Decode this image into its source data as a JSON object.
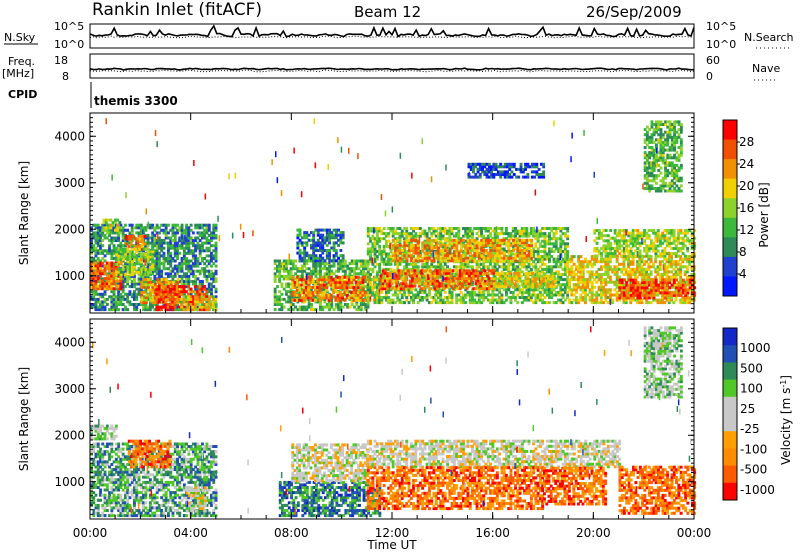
{
  "header": {
    "station": "Rankin Inlet (fitACF)",
    "beam": "Beam 12",
    "date": "26/Sep/2009"
  },
  "top_panels": {
    "nsky_label": "N.Sky",
    "nsky_ticks": [
      "10^5",
      "10^0"
    ],
    "nsearch_label": "N.Search",
    "nsearch_ticks": [
      "10^5",
      "10^0"
    ],
    "freq_label_1": "Freq.",
    "freq_label_2": "[MHz]",
    "freq_ticks": [
      "18",
      "8"
    ],
    "nave_label": "Nave",
    "nave_ticks": [
      "60",
      "0"
    ],
    "cpid_label": "CPID",
    "cpid_value": "themis 3300"
  },
  "x_axis": {
    "label": "Time UT",
    "ticks": [
      "00:00",
      "04:00",
      "08:00",
      "12:00",
      "16:00",
      "20:00",
      "00:00"
    ]
  },
  "colors": {
    "scale": [
      "#0018ff",
      "#2040d0",
      "#2e8b57",
      "#3cb83c",
      "#8cd22c",
      "#f0d000",
      "#f09000",
      "#f05000",
      "#ff0000"
    ],
    "velocity_scale": [
      "#ff0000",
      "#ff5a00",
      "#ff8c00",
      "#ffa000",
      "#c8c8c8",
      "#c8c8c8",
      "#50c828",
      "#2e8b57",
      "#2050b4",
      "#1428c8"
    ],
    "gray": "#c8c8c8"
  },
  "chart_data": [
    {
      "type": "heatmap",
      "title": "Power",
      "xlabel": "Time UT",
      "ylabel": "Slant Range [km]",
      "xlim": [
        0,
        24
      ],
      "ylim": [
        200,
        4500
      ],
      "yticks": [
        1000,
        2000,
        3000,
        4000
      ],
      "colorbar_label": "Power [dB]",
      "colorbar_ticks": [
        4,
        8,
        12,
        16,
        20,
        24,
        28
      ],
      "colorbar_range": [
        0,
        32
      ],
      "bands": [
        {
          "t0": 0.0,
          "t1": 5.0,
          "r0": 250,
          "r1": 2100,
          "c": 0.3
        },
        {
          "t0": 0.0,
          "t1": 1.2,
          "r0": 700,
          "r1": 1300,
          "c": 0.8
        },
        {
          "t0": 0.5,
          "t1": 1.2,
          "r0": 1900,
          "r1": 2200,
          "c": 0.5
        },
        {
          "t0": 1.4,
          "t1": 2.2,
          "r0": 1550,
          "r1": 1850,
          "c": 0.75
        },
        {
          "t0": 1.0,
          "t1": 2.5,
          "r0": 1000,
          "r1": 1600,
          "c": 0.5
        },
        {
          "t0": 2.0,
          "t1": 3.5,
          "r0": 400,
          "r1": 900,
          "c": 0.7
        },
        {
          "t0": 2.6,
          "t1": 4.6,
          "r0": 250,
          "r1": 750,
          "c": 0.85
        },
        {
          "t0": 3.5,
          "t1": 5.0,
          "r0": 250,
          "r1": 550,
          "c": 0.6
        },
        {
          "t0": 7.3,
          "t1": 11.0,
          "r0": 250,
          "r1": 1300,
          "c": 0.4
        },
        {
          "t0": 8.0,
          "t1": 11.5,
          "r0": 450,
          "r1": 950,
          "c": 0.75
        },
        {
          "t0": 8.2,
          "t1": 10.0,
          "r0": 1300,
          "r1": 2000,
          "c": 0.25
        },
        {
          "t0": 11.0,
          "t1": 19.0,
          "r0": 400,
          "r1": 2000,
          "c": 0.45
        },
        {
          "t0": 12.0,
          "t1": 17.5,
          "r0": 1300,
          "r1": 1750,
          "c": 0.7
        },
        {
          "t0": 11.5,
          "t1": 16.0,
          "r0": 700,
          "r1": 1100,
          "c": 0.8
        },
        {
          "t0": 16.0,
          "t1": 18.5,
          "r0": 750,
          "r1": 1050,
          "c": 0.6
        },
        {
          "t0": 19.0,
          "t1": 24.0,
          "r0": 400,
          "r1": 1400,
          "c": 0.6
        },
        {
          "t0": 21.0,
          "t1": 24.0,
          "r0": 500,
          "r1": 900,
          "c": 0.85
        },
        {
          "t0": 20.0,
          "t1": 24.0,
          "r0": 1400,
          "r1": 2000,
          "c": 0.5
        },
        {
          "t0": 22.0,
          "t1": 23.5,
          "r0": 2800,
          "r1": 4300,
          "c": 0.4
        },
        {
          "t0": 15.0,
          "t1": 18.0,
          "r0": 3100,
          "r1": 3400,
          "c": 0.15
        }
      ]
    },
    {
      "type": "heatmap",
      "title": "Velocity",
      "xlabel": "Time UT",
      "ylabel": "Slant Range [km]",
      "xlim": [
        0,
        24
      ],
      "ylim": [
        200,
        4500
      ],
      "yticks": [
        1000,
        2000,
        3000,
        4000
      ],
      "colorbar_label": "Velocity [m s^-1]",
      "colorbar_ticks": [
        "1000",
        "500",
        "100",
        "25",
        "-25",
        "-100",
        "-500",
        "-1000"
      ],
      "bands": [
        {
          "t0": 0.0,
          "t1": 5.0,
          "r0": 250,
          "r1": 1800,
          "c": 0.7
        },
        {
          "t0": 0.0,
          "t1": 1.0,
          "r0": 1900,
          "r1": 2200,
          "c": 0.6
        },
        {
          "t0": 1.5,
          "t1": 3.2,
          "r0": 1300,
          "r1": 1900,
          "c": 0.2
        },
        {
          "t0": 3.8,
          "t1": 4.6,
          "r0": 350,
          "r1": 900,
          "c": 0.5
        },
        {
          "t0": 7.5,
          "t1": 11.5,
          "r0": 250,
          "r1": 1000,
          "c": 0.78
        },
        {
          "t0": 8.0,
          "t1": 11.0,
          "r0": 1000,
          "r1": 1800,
          "c": 0.5
        },
        {
          "t0": 11.0,
          "t1": 21.0,
          "r0": 1300,
          "r1": 1900,
          "c": 0.5
        },
        {
          "t0": 11.0,
          "t1": 18.0,
          "r0": 400,
          "r1": 1300,
          "c": 0.2
        },
        {
          "t0": 18.0,
          "t1": 20.5,
          "r0": 500,
          "r1": 1300,
          "c": 0.18
        },
        {
          "t0": 21.0,
          "t1": 24.0,
          "r0": 300,
          "r1": 1300,
          "c": 0.2
        },
        {
          "t0": 22.0,
          "t1": 23.5,
          "r0": 2800,
          "r1": 4300,
          "c": 0.6
        }
      ]
    }
  ]
}
